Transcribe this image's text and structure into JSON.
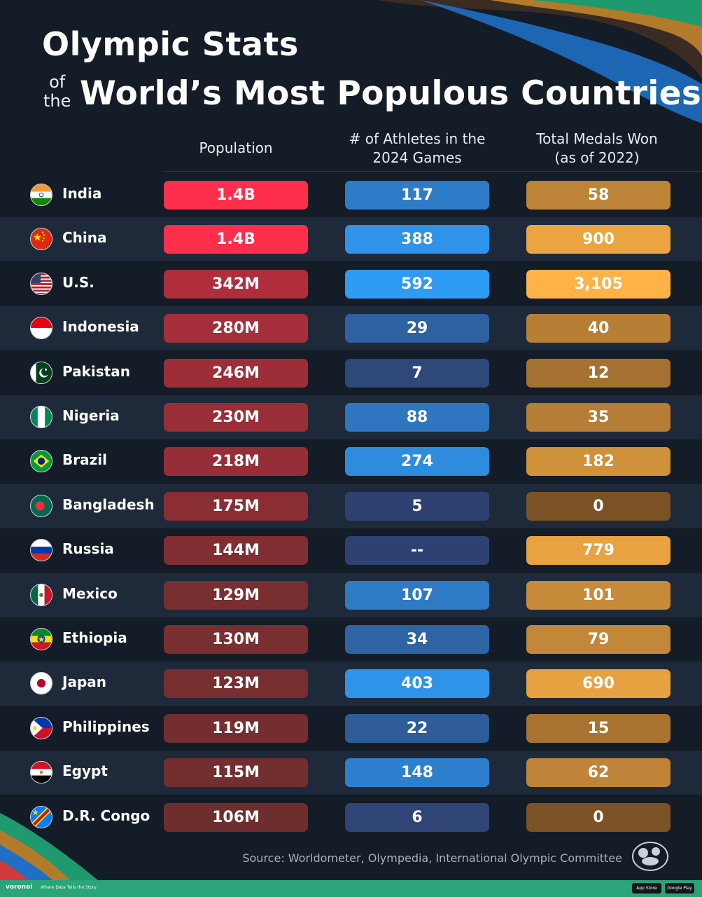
{
  "title": {
    "line1": "Olympic Stats",
    "of": "of",
    "the": "the",
    "line2": "World’s Most Populous Countries"
  },
  "columns": {
    "population": [
      "Population"
    ],
    "athletes": [
      "# of Athletes in the",
      "2024 Games"
    ],
    "medals": [
      "Total Medals Won",
      "(as of 2022)"
    ]
  },
  "source": "Source: Worldometer, Olympedia, International Olympic Committee",
  "footer": {
    "brand": "voronoi",
    "tagline": "Where Data Tells the Story",
    "app_store": "App Store",
    "google_play": "Google Play"
  },
  "colors": {
    "background": "#131c27",
    "row_alt": "#1e2a3a",
    "population_bar_high": "#ff2e4d",
    "population_bar_low": "#6e2e2e",
    "athletes_bar_high": "#2e9bf5",
    "athletes_bar_low": "#2e4272",
    "medals_bar_high": "#ffb347",
    "medals_bar_low": "#7a5226",
    "footer": "#2aa57a"
  },
  "chart_data": {
    "type": "table",
    "title": "Olympic Stats of the World’s Most Populous Countries",
    "columns": [
      "Population",
      "# of Athletes in the 2024 Games",
      "Total Medals Won (as of 2022)"
    ],
    "rows": [
      {
        "country": "India",
        "flag": "india-flag",
        "population": "1.4B",
        "population_value": 1400,
        "athletes": "117",
        "athletes_value": 117,
        "medals": "58",
        "medals_value": 58
      },
      {
        "country": "China",
        "flag": "china-flag",
        "population": "1.4B",
        "population_value": 1400,
        "athletes": "388",
        "athletes_value": 388,
        "medals": "900",
        "medals_value": 900
      },
      {
        "country": "U.S.",
        "flag": "us-flag",
        "population": "342M",
        "population_value": 342,
        "athletes": "592",
        "athletes_value": 592,
        "medals": "3,105",
        "medals_value": 3105
      },
      {
        "country": "Indonesia",
        "flag": "indonesia-flag",
        "population": "280M",
        "population_value": 280,
        "athletes": "29",
        "athletes_value": 29,
        "medals": "40",
        "medals_value": 40
      },
      {
        "country": "Pakistan",
        "flag": "pakistan-flag",
        "population": "246M",
        "population_value": 246,
        "athletes": "7",
        "athletes_value": 7,
        "medals": "12",
        "medals_value": 12
      },
      {
        "country": "Nigeria",
        "flag": "nigeria-flag",
        "population": "230M",
        "population_value": 230,
        "athletes": "88",
        "athletes_value": 88,
        "medals": "35",
        "medals_value": 35
      },
      {
        "country": "Brazil",
        "flag": "brazil-flag",
        "population": "218M",
        "population_value": 218,
        "athletes": "274",
        "athletes_value": 274,
        "medals": "182",
        "medals_value": 182
      },
      {
        "country": "Bangladesh",
        "flag": "bangladesh-flag",
        "population": "175M",
        "population_value": 175,
        "athletes": "5",
        "athletes_value": 5,
        "medals": "0",
        "medals_value": 0
      },
      {
        "country": "Russia",
        "flag": "russia-flag",
        "population": "144M",
        "population_value": 144,
        "athletes": "--",
        "athletes_value": null,
        "medals": "779",
        "medals_value": 779
      },
      {
        "country": "Mexico",
        "flag": "mexico-flag",
        "population": "129M",
        "population_value": 129,
        "athletes": "107",
        "athletes_value": 107,
        "medals": "101",
        "medals_value": 101
      },
      {
        "country": "Ethiopia",
        "flag": "ethiopia-flag",
        "population": "130M",
        "population_value": 130,
        "athletes": "34",
        "athletes_value": 34,
        "medals": "79",
        "medals_value": 79
      },
      {
        "country": "Japan",
        "flag": "japan-flag",
        "population": "123M",
        "population_value": 123,
        "athletes": "403",
        "athletes_value": 403,
        "medals": "690",
        "medals_value": 690
      },
      {
        "country": "Philippines",
        "flag": "philippines-flag",
        "population": "119M",
        "population_value": 119,
        "athletes": "22",
        "athletes_value": 22,
        "medals": "15",
        "medals_value": 15
      },
      {
        "country": "Egypt",
        "flag": "egypt-flag",
        "population": "115M",
        "population_value": 115,
        "athletes": "148",
        "athletes_value": 148,
        "medals": "62",
        "medals_value": 62
      },
      {
        "country": "D.R. Congo",
        "flag": "dr-congo-flag",
        "population": "106M",
        "population_value": 106,
        "athletes": "6",
        "athletes_value": 6,
        "medals": "0",
        "medals_value": 0
      }
    ]
  }
}
